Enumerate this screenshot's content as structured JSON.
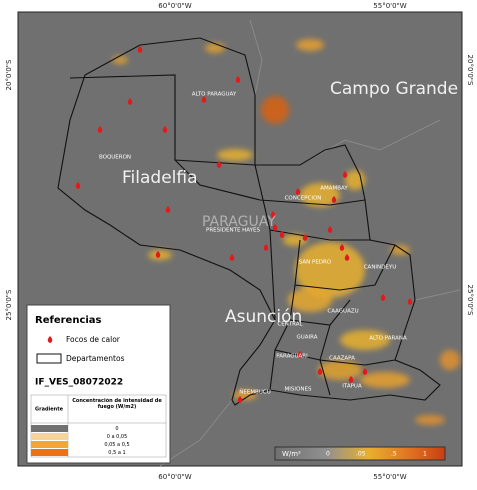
{
  "grid_labels": {
    "top": [
      "60°0'0\"W",
      "55°0'0\"W"
    ],
    "bottom": [
      "60°0'0\"W",
      "55°0'0\"W"
    ],
    "left": [
      "20°0'0\"S",
      "25°0'0\"S"
    ],
    "right": [
      "20°0'0\"S",
      "25°0'0\"S"
    ]
  },
  "places": [
    "Campo Grande",
    "Filadelfia",
    "Asunción",
    "PARAGUAY"
  ],
  "departments": [
    "ALTO PARAGUAY",
    "BOQUERON",
    "CONCEPCION",
    "AMAMBAY",
    "PRESIDENTE HAYES",
    "SAN PEDRO",
    "CANINDEYU",
    "CAAGUAZU",
    "CENTRAL",
    "GUAIRA",
    "ALTO PARANA",
    "CAAZAPA",
    "PARAGUARI",
    "ÑEEMBUCU",
    "MISIONES",
    "ITAPUA"
  ],
  "legend": {
    "title": "Referencias",
    "items": [
      "Focos de calor",
      "Departamentos"
    ],
    "layer": "IF_VES_08072022",
    "table": {
      "header": [
        "Gradiente",
        "Concentración de intensidad de fuego (W/m2)"
      ],
      "rows": [
        "0",
        "0 a 0,05",
        "0,05 a 0,5",
        "0,5 a 1"
      ]
    }
  },
  "colorbar": {
    "unit": "W/m²",
    "labels": [
      "0",
      ".05",
      ".5",
      "1"
    ]
  }
}
